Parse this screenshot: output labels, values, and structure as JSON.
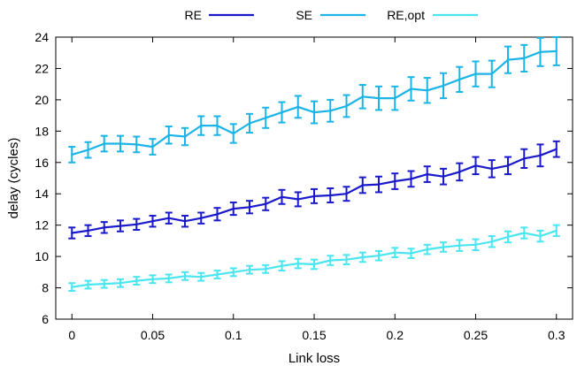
{
  "chart_data": {
    "type": "line",
    "title": "",
    "xlabel": "Link loss",
    "ylabel": "delay (cycles)",
    "xlim": [
      -0.01,
      0.31
    ],
    "ylim": [
      6,
      24
    ],
    "x_ticks": [
      0,
      0.05,
      0.1,
      0.15,
      0.2,
      0.25,
      0.3
    ],
    "x_tick_labels": [
      "0",
      "0.05",
      "0.1",
      "0.15",
      "0.2",
      "0.25",
      "0.3"
    ],
    "y_ticks": [
      6,
      8,
      10,
      12,
      14,
      16,
      18,
      20,
      22,
      24
    ],
    "y_tick_labels": [
      "6",
      "8",
      "10",
      "12",
      "14",
      "16",
      "18",
      "20",
      "22",
      "24"
    ],
    "grid": false,
    "legend_position": "top-outside",
    "x": [
      0,
      0.01,
      0.02,
      0.03,
      0.04,
      0.05,
      0.06,
      0.07,
      0.08,
      0.09,
      0.1,
      0.11,
      0.12,
      0.13,
      0.14,
      0.15,
      0.16,
      0.17,
      0.18,
      0.19,
      0.2,
      0.21,
      0.22,
      0.23,
      0.24,
      0.25,
      0.26,
      0.27,
      0.28,
      0.29,
      0.3
    ],
    "series": [
      {
        "name": "RE",
        "color": "#1a1acc",
        "values": [
          11.5,
          11.65,
          11.85,
          11.95,
          12.05,
          12.25,
          12.45,
          12.25,
          12.45,
          12.7,
          13.05,
          13.15,
          13.35,
          13.8,
          13.65,
          13.85,
          13.9,
          14.0,
          14.55,
          14.6,
          14.8,
          14.95,
          15.25,
          15.1,
          15.4,
          15.8,
          15.6,
          15.8,
          16.25,
          16.45,
          16.85
        ],
        "errors": [
          0.35,
          0.35,
          0.35,
          0.35,
          0.35,
          0.35,
          0.35,
          0.35,
          0.35,
          0.4,
          0.4,
          0.4,
          0.4,
          0.45,
          0.45,
          0.45,
          0.45,
          0.45,
          0.5,
          0.5,
          0.5,
          0.5,
          0.5,
          0.5,
          0.55,
          0.55,
          0.55,
          0.55,
          0.6,
          0.7,
          0.5
        ]
      },
      {
        "name": "SE",
        "color": "#1ab4e6",
        "values": [
          16.5,
          16.8,
          17.2,
          17.2,
          17.15,
          17.0,
          17.75,
          17.65,
          18.35,
          18.35,
          17.85,
          18.5,
          18.85,
          19.2,
          19.55,
          19.2,
          19.3,
          19.6,
          20.2,
          20.1,
          20.1,
          20.7,
          20.6,
          20.9,
          21.3,
          21.65,
          21.65,
          22.55,
          22.65,
          23.05,
          23.1
        ],
        "errors": [
          0.5,
          0.5,
          0.5,
          0.5,
          0.5,
          0.5,
          0.55,
          0.55,
          0.6,
          0.6,
          0.6,
          0.6,
          0.65,
          0.65,
          0.7,
          0.7,
          0.7,
          0.7,
          0.75,
          0.75,
          0.75,
          0.75,
          0.8,
          0.8,
          0.8,
          0.8,
          0.85,
          0.85,
          0.85,
          0.9,
          0.9
        ]
      },
      {
        "name": "RE,opt",
        "color": "#4ae6f0",
        "values": [
          8.05,
          8.2,
          8.25,
          8.3,
          8.45,
          8.55,
          8.6,
          8.75,
          8.7,
          8.85,
          9.0,
          9.15,
          9.2,
          9.4,
          9.55,
          9.5,
          9.75,
          9.8,
          9.95,
          10.05,
          10.25,
          10.2,
          10.45,
          10.6,
          10.7,
          10.75,
          10.95,
          11.25,
          11.5,
          11.3,
          11.65
        ],
        "errors": [
          0.25,
          0.25,
          0.25,
          0.25,
          0.25,
          0.25,
          0.25,
          0.25,
          0.25,
          0.25,
          0.25,
          0.25,
          0.25,
          0.3,
          0.3,
          0.3,
          0.3,
          0.3,
          0.3,
          0.3,
          0.3,
          0.3,
          0.3,
          0.3,
          0.35,
          0.35,
          0.35,
          0.35,
          0.35,
          0.35,
          0.35
        ]
      }
    ]
  }
}
